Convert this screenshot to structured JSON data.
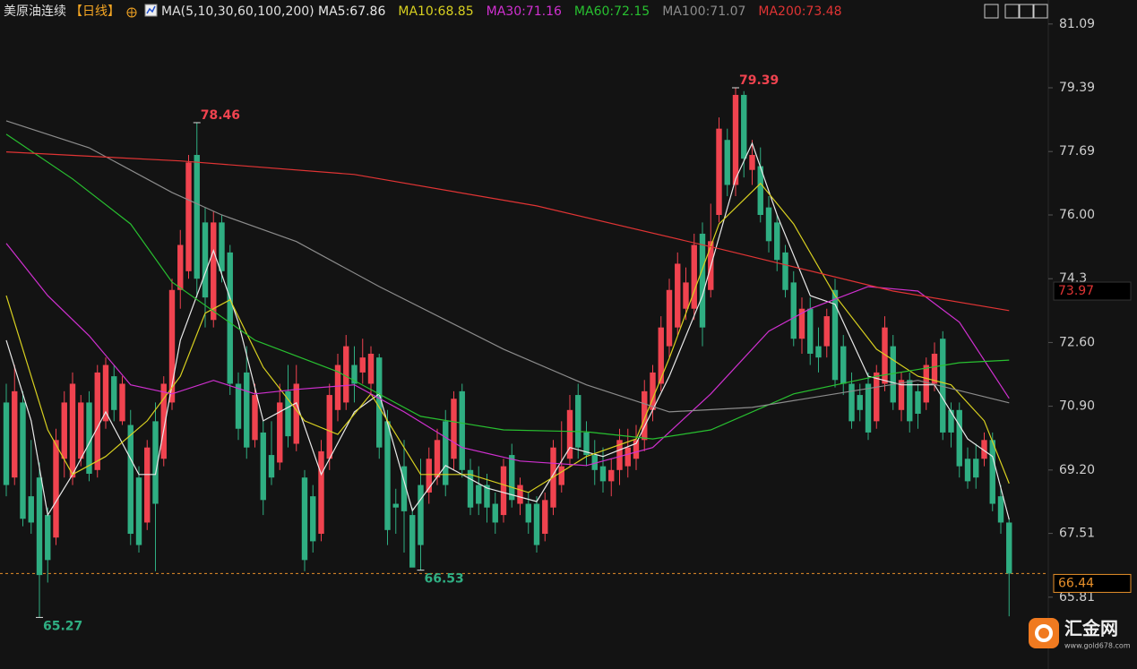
{
  "chart_data": {
    "type": "candlestick",
    "title": "美原油连续",
    "period": "【日线】",
    "ma_group": "MA(5,10,30,60,100,200)",
    "ylim": [
      64.54,
      81.73
    ],
    "yticks": [
      81.09,
      79.39,
      77.69,
      {
        "value": 76,
        "label": "76.00"
      },
      74.3,
      {
        "value": 72.6,
        "label": "72.60"
      },
      {
        "value": 70.9,
        "label": "70.90"
      },
      {
        "value": 69.2,
        "label": "69.20"
      },
      67.51,
      65.81
    ],
    "up_color": "#f0434f",
    "down_color": "#2fae82",
    "candles": [
      [
        71,
        71.5,
        68.5,
        68.8
      ],
      [
        69,
        72,
        68.8,
        71.3
      ],
      [
        71,
        71.3,
        67.7,
        67.9
      ],
      [
        68.5,
        70,
        67.5,
        67.8
      ],
      [
        69,
        69.4,
        65.27,
        66.4
      ],
      [
        68,
        68.2,
        66.2,
        66.8
      ],
      [
        67.4,
        70.3,
        67.2,
        70
      ],
      [
        69.5,
        71.3,
        69,
        71
      ],
      [
        69,
        71.8,
        68.8,
        71.5
      ],
      [
        69.5,
        71.2,
        69.3,
        71
      ],
      [
        71,
        71.3,
        68.9,
        69.1
      ],
      [
        69.2,
        72,
        69,
        71.8
      ],
      [
        70.5,
        72.2,
        70.3,
        72
      ],
      [
        71.7,
        72,
        70.5,
        70.8
      ],
      [
        70.5,
        71.7,
        70.4,
        71.5
      ],
      [
        70.4,
        70.8,
        67.2,
        67.5
      ],
      [
        69,
        69.3,
        67,
        67.2
      ],
      [
        67.8,
        70,
        67.6,
        69.8
      ],
      [
        70.5,
        71,
        66.5,
        68.3
      ],
      [
        69.5,
        71.7,
        69.3,
        71.5
      ],
      [
        71,
        74.3,
        70.8,
        74
      ],
      [
        74,
        75.6,
        73.5,
        75.2
      ],
      [
        74.5,
        77.6,
        74.3,
        77.4
      ],
      [
        77.6,
        78.46,
        73.8,
        74.3
      ],
      [
        75.8,
        76.2,
        73,
        73.8
      ],
      [
        73.2,
        76.1,
        73,
        75.8
      ],
      [
        75.8,
        76,
        74.2,
        74.5
      ],
      [
        75,
        75.2,
        71.2,
        71.5
      ],
      [
        71.5,
        71.8,
        70,
        70.3
      ],
      [
        71.8,
        72.5,
        69.5,
        69.8
      ],
      [
        70,
        71.5,
        69.8,
        71.2
      ],
      [
        70.2,
        70.5,
        68,
        68.4
      ],
      [
        69.6,
        70.5,
        68.8,
        69
      ],
      [
        69.4,
        71.5,
        69.2,
        71
      ],
      [
        71.3,
        72,
        69.8,
        70.1
      ],
      [
        69.9,
        72,
        69.7,
        71.5
      ],
      [
        69,
        69.2,
        66.5,
        66.8
      ],
      [
        68.5,
        68.8,
        67,
        67.3
      ],
      [
        67.5,
        70,
        67.3,
        69.7
      ],
      [
        69.5,
        71.5,
        69.2,
        71.2
      ],
      [
        70.8,
        72.3,
        70.5,
        72
      ],
      [
        71,
        72.8,
        70.8,
        72.5
      ],
      [
        72,
        72.5,
        71,
        71.5
      ],
      [
        71.8,
        72.7,
        71.5,
        72.2
      ],
      [
        71.5,
        72.5,
        71.2,
        72.3
      ],
      [
        72.2,
        72.3,
        69.5,
        69.8
      ],
      [
        70.5,
        70.8,
        67.2,
        67.6
      ],
      [
        68.3,
        68.7,
        67.5,
        68.2
      ],
      [
        69.3,
        70,
        67,
        68.1
      ],
      [
        68,
        68.2,
        66.7,
        66.6
      ],
      [
        68.8,
        69.5,
        66.53,
        67.2
      ],
      [
        68.6,
        69.8,
        68.3,
        69.5
      ],
      [
        69,
        70.3,
        68.8,
        70
      ],
      [
        70.5,
        70.8,
        68.5,
        68.8
      ],
      [
        69.5,
        71.3,
        69.2,
        71.1
      ],
      [
        71.3,
        71.5,
        69,
        69.2
      ],
      [
        69.2,
        69.5,
        68,
        68.2
      ],
      [
        68.8,
        69.3,
        68,
        68.3
      ],
      [
        68.8,
        69.1,
        67.8,
        68.2
      ],
      [
        68.3,
        68.6,
        67.5,
        67.8
      ],
      [
        68,
        69.5,
        67.8,
        69.3
      ],
      [
        69.6,
        69.9,
        68.2,
        68.4
      ],
      [
        68.3,
        69,
        68,
        68.8
      ],
      [
        68.3,
        68.6,
        67.5,
        67.8
      ],
      [
        68.3,
        68.5,
        67,
        67.2
      ],
      [
        67.5,
        68.6,
        67.3,
        68.4
      ],
      [
        68.2,
        70,
        68,
        69.8
      ],
      [
        68.8,
        70.5,
        68.6,
        69.3
      ],
      [
        69.5,
        71.2,
        69.3,
        70.8
      ],
      [
        71.2,
        71.5,
        69.5,
        69.8
      ],
      [
        70.2,
        70.5,
        69.3,
        69.6
      ],
      [
        69.6,
        70,
        68.8,
        69.2
      ],
      [
        69.3,
        69.8,
        68.6,
        68.9
      ],
      [
        68.9,
        69.5,
        68.5,
        69.2
      ],
      [
        69.2,
        70.3,
        68.8,
        70
      ],
      [
        69.3,
        70.3,
        69,
        69.8
      ],
      [
        69.5,
        70.4,
        69.2,
        70
      ],
      [
        70,
        71.6,
        69.7,
        71.3
      ],
      [
        70.8,
        72,
        70.5,
        71.8
      ],
      [
        71.5,
        73.3,
        71.3,
        73
      ],
      [
        72.5,
        74.3,
        72.2,
        74
      ],
      [
        73,
        75,
        72.8,
        74.7
      ],
      [
        73.5,
        74.6,
        73.2,
        74.2
      ],
      [
        73.5,
        75.5,
        73.2,
        75.2
      ],
      [
        75.5,
        75.8,
        72.5,
        73
      ],
      [
        74,
        76.3,
        73.8,
        75.3
      ],
      [
        76,
        78.6,
        75.8,
        78.3
      ],
      [
        78,
        78.3,
        76.5,
        76.8
      ],
      [
        76.8,
        79.39,
        76.5,
        79.2
      ],
      [
        79.2,
        79.3,
        77,
        77.5
      ],
      [
        77.2,
        78,
        76.8,
        77.6
      ],
      [
        77.3,
        77.8,
        75.8,
        76
      ],
      [
        76.2,
        76.5,
        75,
        75.3
      ],
      [
        75.8,
        76,
        74.5,
        74.8
      ],
      [
        75,
        75.2,
        73.8,
        74
      ],
      [
        74.2,
        74.5,
        72.5,
        72.7
      ],
      [
        72.7,
        73.8,
        72.3,
        73.5
      ],
      [
        73.5,
        73.8,
        72,
        72.3
      ],
      [
        72.5,
        73,
        71.8,
        72.2
      ],
      [
        72.5,
        73.5,
        72.2,
        73.3
      ],
      [
        74,
        74.3,
        71.4,
        71.6
      ],
      [
        72.5,
        72.8,
        71.2,
        71.5
      ],
      [
        71.5,
        71.8,
        70.3,
        70.5
      ],
      [
        71.2,
        71.5,
        70.5,
        70.8
      ],
      [
        71.5,
        71.8,
        70,
        70.2
      ],
      [
        70.5,
        72,
        70.3,
        71.8
      ],
      [
        71.5,
        73.3,
        71.3,
        73
      ],
      [
        72.5,
        72.8,
        70.8,
        71
      ],
      [
        70.8,
        71.8,
        70.5,
        71.6
      ],
      [
        71.6,
        71.8,
        70.2,
        70.5
      ],
      [
        71.3,
        71.5,
        70.3,
        70.7
      ],
      [
        71,
        72.2,
        70.8,
        72
      ],
      [
        71.5,
        72.6,
        71.3,
        72.3
      ],
      [
        72.7,
        72.9,
        70,
        70.2
      ],
      [
        70.8,
        71,
        69.8,
        70.2
      ],
      [
        70.8,
        71,
        69,
        69.3
      ],
      [
        69.5,
        69.8,
        68.7,
        68.9
      ],
      [
        69.5,
        69.9,
        68.7,
        69
      ],
      [
        69.5,
        70.2,
        69.3,
        70
      ],
      [
        70,
        70.2,
        68.1,
        68.3
      ],
      [
        68.5,
        68.8,
        67.5,
        67.8
      ],
      [
        67.8,
        67.9,
        65.3,
        66.44
      ]
    ],
    "ma_lines": [
      {
        "name": "MA5",
        "label": "MA5:67.86",
        "color": "#e8e8e8",
        "x": [
          0,
          3,
          5,
          8,
          12,
          16,
          18,
          21,
          25,
          28,
          31,
          35,
          38,
          42,
          45,
          49,
          53,
          58,
          64,
          68,
          72,
          76,
          80,
          84,
          88,
          90,
          93,
          97,
          100,
          104,
          108,
          112,
          116,
          119,
          121
        ],
        "values": [
          72.66,
          70.51,
          68.0,
          69.08,
          70.75,
          69.08,
          69.08,
          72.66,
          75.05,
          73.14,
          70.51,
          70.99,
          69.08,
          70.75,
          71.23,
          68.12,
          69.32,
          68.72,
          68.36,
          69.8,
          69.56,
          69.91,
          71.7,
          73.85,
          76.96,
          77.91,
          76.0,
          73.85,
          73.62,
          71.7,
          71.47,
          71.47,
          70.03,
          69.56,
          67.88
        ]
      },
      {
        "name": "MA10",
        "label": "MA10:68.85",
        "color": "#d8d020",
        "x": [
          0,
          5,
          8,
          12,
          17,
          21,
          24,
          27,
          31,
          36,
          40,
          44,
          50,
          56,
          63,
          70,
          76,
          80,
          86,
          91,
          95,
          100,
          105,
          110,
          114,
          118,
          121
        ],
        "values": [
          73.85,
          70.27,
          69.08,
          69.56,
          70.51,
          71.7,
          73.38,
          73.74,
          71.94,
          70.51,
          70.15,
          71.23,
          69.08,
          69.08,
          68.6,
          69.56,
          70.03,
          72.18,
          75.76,
          76.84,
          75.76,
          73.85,
          72.42,
          71.7,
          71.47,
          70.51,
          68.84
        ]
      },
      {
        "name": "MA30",
        "label": "MA30:71.16",
        "color": "#d030d0",
        "x": [
          0,
          5,
          10,
          15,
          20,
          25,
          30,
          35,
          42,
          48,
          55,
          62,
          70,
          78,
          85,
          92,
          97,
          104,
          110,
          115,
          121
        ],
        "values": [
          75.24,
          73.85,
          72.78,
          71.47,
          71.23,
          71.59,
          71.23,
          71.35,
          71.47,
          70.75,
          69.8,
          69.44,
          69.32,
          69.8,
          71.23,
          72.9,
          73.5,
          74.09,
          73.97,
          73.14,
          71.11
        ]
      },
      {
        "name": "MA60",
        "label": "MA60:72.15",
        "color": "#28c030",
        "x": [
          0,
          8,
          15,
          20,
          30,
          40,
          50,
          60,
          70,
          78,
          85,
          95,
          105,
          115,
          121
        ],
        "values": [
          78.15,
          76.96,
          75.76,
          74.21,
          72.66,
          71.82,
          70.63,
          70.27,
          70.22,
          70.03,
          70.27,
          71.23,
          71.7,
          72.06,
          72.13
        ]
      },
      {
        "name": "MA100",
        "label": "MA100:71.07",
        "color": "#8c8c8c",
        "x": [
          0,
          10,
          20,
          26,
          35,
          45,
          60,
          70,
          80,
          90,
          100,
          110,
          121
        ],
        "values": [
          78.51,
          77.79,
          76.6,
          76.0,
          75.29,
          74.09,
          72.42,
          71.47,
          70.75,
          70.87,
          71.23,
          71.59,
          70.99
        ]
      },
      {
        "name": "MA200",
        "label": "MA200:73.48",
        "color": "#e03434",
        "x": [
          0,
          21,
          42,
          64,
          86,
          107,
          121
        ],
        "values": [
          77.68,
          77.44,
          77.08,
          76.24,
          75.1,
          73.97,
          73.45
        ]
      }
    ],
    "annotations": [
      {
        "value": 78.46,
        "candle": 23,
        "color": "#f0434f"
      },
      {
        "value": 79.39,
        "candle": 88,
        "color": "#f0434f"
      },
      {
        "value": 66.53,
        "candle": 50,
        "color": "#2fae82"
      },
      {
        "value": 65.27,
        "candle": 4,
        "color": "#2fae82"
      }
    ],
    "last_price": 66.44,
    "ma_tag": 73.97,
    "watermark": {
      "name": "汇金网",
      "url": "www.gold678.com"
    }
  }
}
